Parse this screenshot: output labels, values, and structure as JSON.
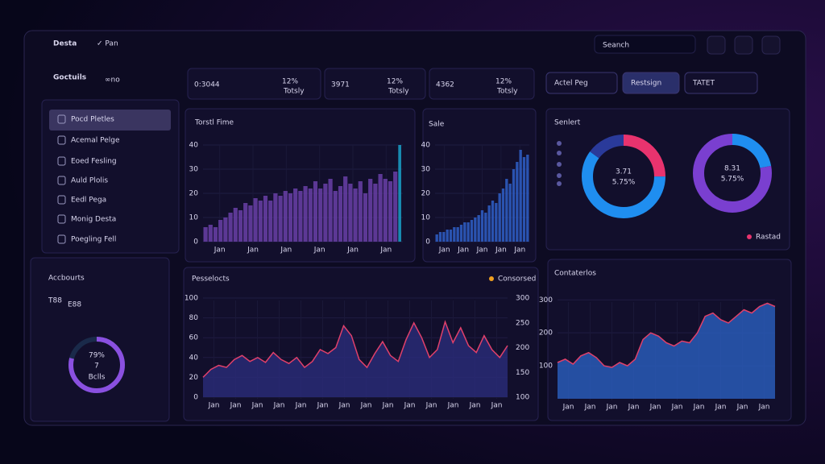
{
  "header": {
    "brand": "Desta",
    "menu": "✓ Pan",
    "search": "Seanch",
    "title": "Goctuils",
    "title_suffix": "∞no"
  },
  "kpis": [
    {
      "value": "0:3044",
      "badge": "12%",
      "sub": "Totsly"
    },
    {
      "value": "3971",
      "badge": "12%",
      "sub": "Totsly"
    },
    {
      "value": "4362",
      "badge": "12%",
      "sub": "Totsly"
    }
  ],
  "buttons": [
    "Actel Peg",
    "Restsign",
    "TATET"
  ],
  "sidebar": {
    "items": [
      "Pocd Pletles",
      "Acemal Pelge",
      "Eoed Fesling",
      "Auld Plolis",
      "Eedl Pega",
      "Monig Desta",
      "Poegling Fell"
    ],
    "accounts_title": "Accbourts",
    "accounts": [
      "T88",
      "E88"
    ],
    "gauge": {
      "value": 79,
      "label": "79%",
      "center": "7",
      "caption": "Bclls"
    }
  },
  "charts": {
    "time": {
      "title": "Torstl Fime",
      "color": "#6a3fa8",
      "highlight_color": "#1aa0c8",
      "ylim": [
        0,
        40
      ],
      "yticks": [
        0,
        10,
        20,
        30,
        40
      ],
      "xlabels": [
        "Jan",
        "Jan",
        "Jan",
        "Jan",
        "Jan",
        "Jan"
      ],
      "values": [
        6,
        7,
        6,
        9,
        10,
        12,
        14,
        13,
        16,
        15,
        18,
        17,
        19,
        17,
        20,
        19,
        21,
        20,
        22,
        21,
        23,
        22,
        25,
        22,
        24,
        26,
        21,
        23,
        27,
        24,
        22,
        25,
        20,
        26,
        24,
        28,
        26,
        25,
        29,
        40
      ]
    },
    "sale": {
      "title": "Sale",
      "color": "#2f5fc8",
      "ylim": [
        0,
        40
      ],
      "yticks": [
        0,
        10,
        20,
        30,
        40
      ],
      "xlabels": [
        "Jan",
        "Jan",
        "Jan",
        "Jan",
        "Jan"
      ],
      "values": [
        3,
        4,
        4,
        5,
        5,
        6,
        6,
        7,
        8,
        8,
        9,
        10,
        11,
        13,
        12,
        15,
        17,
        16,
        20,
        22,
        26,
        24,
        30,
        33,
        38,
        35,
        36
      ]
    },
    "sentiment": {
      "title": "Senlert",
      "legend": "Rastad",
      "legend_color": "#e8336e",
      "donuts": [
        {
          "center": "3.71",
          "sub": "5.75%",
          "segments": [
            {
              "value": 25,
              "color": "#e8336e"
            },
            {
              "value": 60,
              "color": "#1f8ef0"
            },
            {
              "value": 15,
              "color": "#2a3a9a"
            }
          ]
        },
        {
          "center": "8.31",
          "sub": "5.75%",
          "segments": [
            {
              "value": 22,
              "color": "#1f8ef0"
            },
            {
              "value": 78,
              "color": "#7a3fd0"
            }
          ]
        }
      ]
    },
    "products": {
      "title": "Pesselocts",
      "legend": "Consorsed",
      "legend_color": "#f0a020",
      "line_color": "#e0406a",
      "fill": "#2a2c7a",
      "ylim": [
        0,
        100
      ],
      "yticks": [
        0,
        20,
        40,
        60,
        80,
        100
      ],
      "y2lim": [
        100,
        300
      ],
      "y2ticks": [
        100,
        150,
        200,
        250,
        300
      ],
      "xlabels": [
        "Jan",
        "Jan",
        "Jan",
        "Jan",
        "Jan",
        "Jan",
        "Jan",
        "Jan",
        "Jan",
        "Jan",
        "Jan",
        "Jan",
        "Jan",
        "Jan"
      ],
      "values": [
        20,
        28,
        32,
        30,
        38,
        42,
        36,
        40,
        35,
        45,
        38,
        34,
        40,
        30,
        36,
        48,
        44,
        50,
        72,
        62,
        38,
        30,
        44,
        56,
        42,
        36,
        58,
        75,
        60,
        40,
        48,
        76,
        55,
        70,
        52,
        45,
        62,
        48,
        40,
        52
      ]
    },
    "categories": {
      "title": "Contaterlos",
      "color": "#2a5fc0",
      "line_color": "#e0406a",
      "ylim": [
        0,
        330
      ],
      "yticks": [
        100,
        200,
        300
      ],
      "xlabels": [
        "Jan",
        "Jan",
        "Jan",
        "Jan",
        "Jan",
        "Jan",
        "Jan",
        "Jan",
        "Jan",
        "Jan"
      ],
      "values": [
        110,
        120,
        105,
        130,
        140,
        125,
        100,
        95,
        110,
        100,
        120,
        180,
        200,
        190,
        170,
        160,
        175,
        170,
        200,
        250,
        260,
        240,
        230,
        250,
        270,
        260,
        280,
        290,
        280
      ]
    }
  }
}
